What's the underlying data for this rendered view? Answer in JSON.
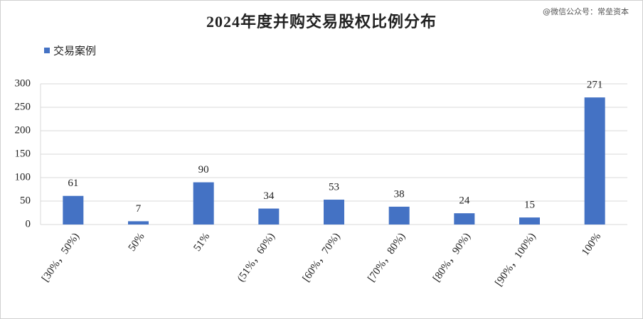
{
  "chart_data": {
    "type": "bar",
    "title": "2024年度并购交易股权比例分布",
    "watermark": "@微信公众号：常垒资本",
    "categories": [
      "[30%，50%)",
      "50%",
      "51%",
      "(51%，60%)",
      "[60%，70%)",
      "[70%，80%)",
      "[80%，90%)",
      "[90%，100%)",
      "100%"
    ],
    "series": [
      {
        "name": "交易案例",
        "color": "#4472c4",
        "values": [
          61,
          7,
          90,
          34,
          53,
          38,
          24,
          15,
          271
        ]
      }
    ],
    "ylim": [
      0,
      300
    ],
    "yticks": [
      0,
      50,
      100,
      150,
      200,
      250,
      300
    ],
    "grid": true,
    "legend": "top-left"
  }
}
